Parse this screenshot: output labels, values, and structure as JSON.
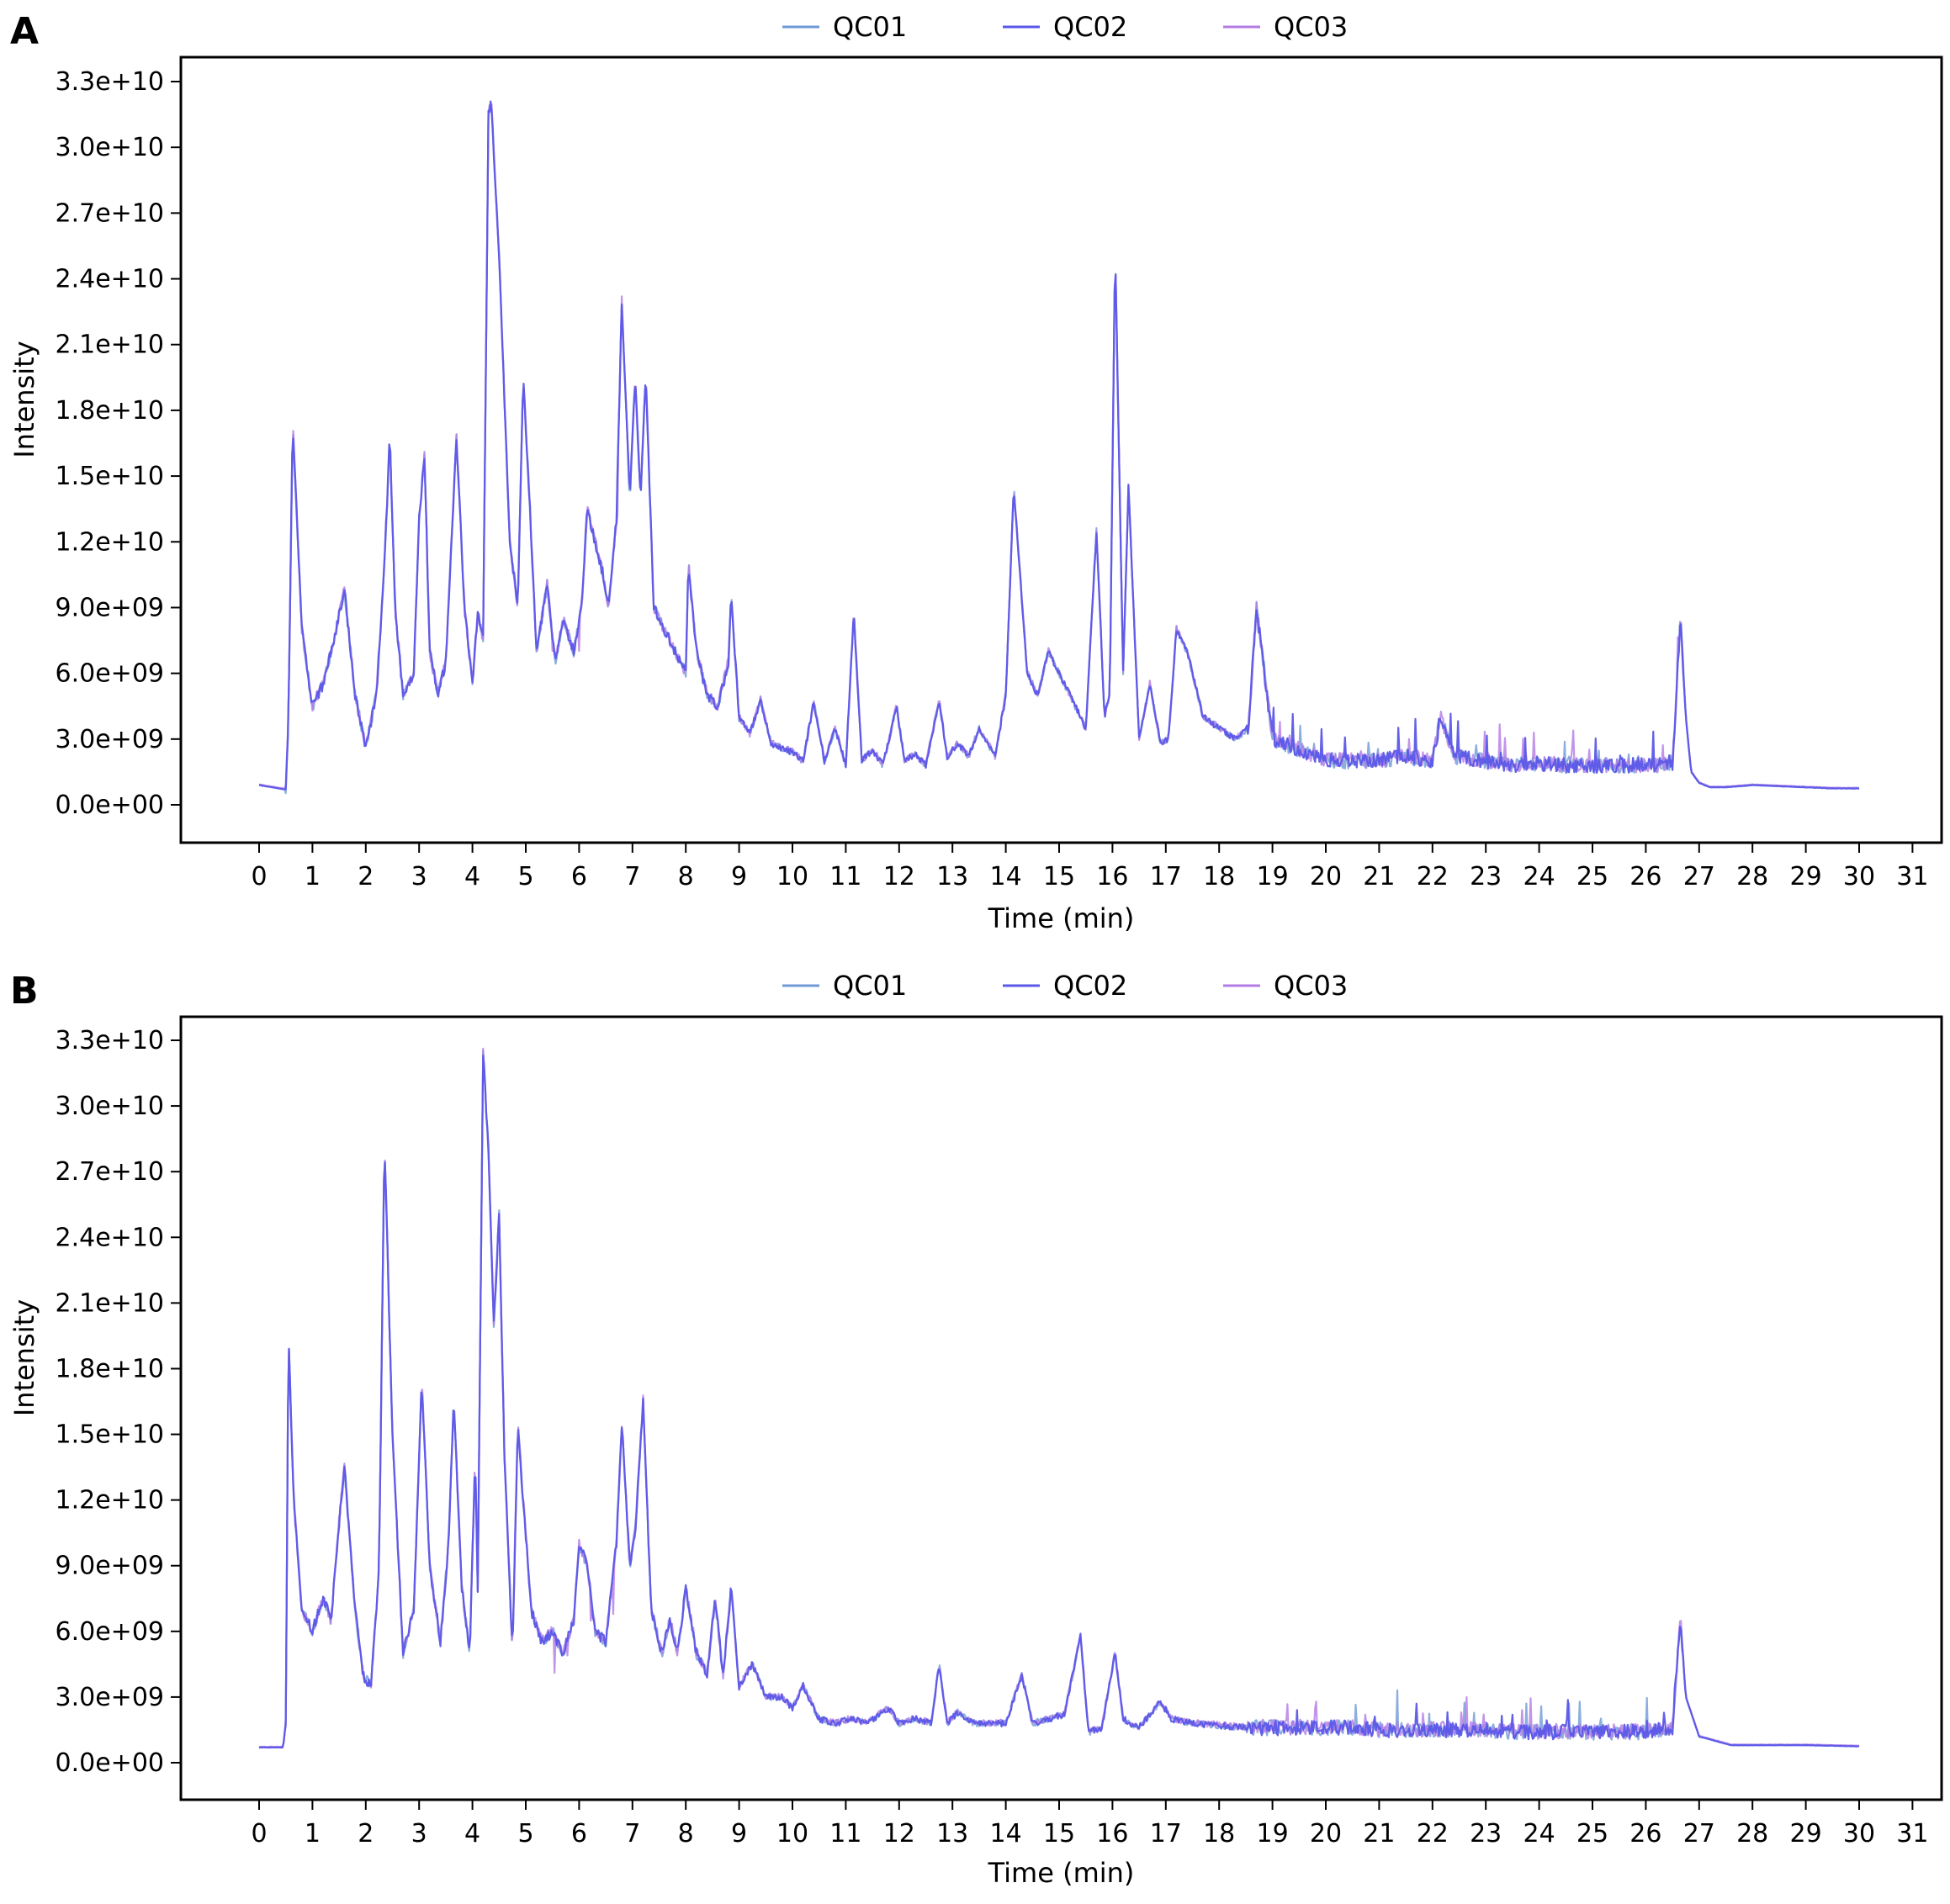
{
  "chart_data": [
    {
      "panel": "A",
      "type": "line",
      "xlabel": "Time (min)",
      "ylabel": "Intensity",
      "xlim": [
        -1.5,
        31.5
      ],
      "ylim": [
        -1600000000.0,
        34000000000.0
      ],
      "x_ticks": [
        "0",
        "1",
        "2",
        "3",
        "4",
        "5",
        "6",
        "7",
        "8",
        "9",
        "10",
        "11",
        "12",
        "13",
        "14",
        "15",
        "16",
        "17",
        "18",
        "19",
        "20",
        "21",
        "22",
        "23",
        "24",
        "25",
        "26",
        "27",
        "28",
        "29",
        "30",
        "31"
      ],
      "y_ticks": [
        "0.0e+00",
        "3.0e+09",
        "6.0e+09",
        "9.0e+09",
        "1.2e+10",
        "1.5e+10",
        "1.8e+10",
        "2.1e+10",
        "2.4e+10",
        "2.7e+10",
        "3.0e+10",
        "3.3e+10"
      ],
      "legend_position": "top-center",
      "series": [
        {
          "name": "QC01",
          "color": "#6f9ad6",
          "offset": 0.0
        },
        {
          "name": "QC02",
          "color": "#5b57e8",
          "offset": 0.0
        },
        {
          "name": "QC03",
          "color": "#b37be6",
          "offset": 1.0
        }
      ],
      "x": [
        0.0,
        0.5,
        0.55,
        0.63,
        0.7,
        0.8,
        1.0,
        1.2,
        1.4,
        1.6,
        1.8,
        2.0,
        2.2,
        2.35,
        2.45,
        2.55,
        2.7,
        2.9,
        3.0,
        3.1,
        3.2,
        3.35,
        3.5,
        3.7,
        3.85,
        4.0,
        4.1,
        4.2,
        4.3,
        4.35,
        4.5,
        4.7,
        4.85,
        4.95,
        5.05,
        5.2,
        5.4,
        5.55,
        5.7,
        5.9,
        6.05,
        6.15,
        6.3,
        6.45,
        6.55,
        6.7,
        6.8,
        6.95,
        7.05,
        7.15,
        7.25,
        7.4,
        7.6,
        7.8,
        8.0,
        8.05,
        8.2,
        8.4,
        8.6,
        8.8,
        8.85,
        9.0,
        9.2,
        9.4,
        9.6,
        9.8,
        10.0,
        10.2,
        10.4,
        10.6,
        10.8,
        11.0,
        11.15,
        11.3,
        11.5,
        11.7,
        11.95,
        12.1,
        12.3,
        12.5,
        12.75,
        12.9,
        13.1,
        13.3,
        13.5,
        13.8,
        14.0,
        14.15,
        14.4,
        14.6,
        14.8,
        15.0,
        15.2,
        15.5,
        15.7,
        15.85,
        15.95,
        16.05,
        16.2,
        16.3,
        16.5,
        16.7,
        16.9,
        17.05,
        17.2,
        17.4,
        17.7,
        18.0,
        18.3,
        18.55,
        18.7,
        19.0,
        19.5,
        20.0,
        20.5,
        21.0,
        21.5,
        22.0,
        22.15,
        22.4,
        23.0,
        23.5,
        24.0,
        24.5,
        25.0,
        25.5,
        26.0,
        26.5,
        26.65,
        26.75,
        26.85,
        27.0,
        27.2,
        27.5,
        28.0,
        28.5,
        29.0,
        29.5,
        30.0
      ],
      "values": [
        900000000.0,
        700000000.0,
        3800000000.0,
        17500000000.0,
        13500000000.0,
        8000000000.0,
        4500000000.0,
        5500000000.0,
        7500000000.0,
        9800000000.0,
        5000000000.0,
        2600000000.0,
        5000000000.0,
        11000000000.0,
        16800000000.0,
        9000000000.0,
        5000000000.0,
        6000000000.0,
        13000000000.0,
        16000000000.0,
        7000000000.0,
        5000000000.0,
        6500000000.0,
        16800000000.0,
        9000000000.0,
        5500000000.0,
        8800000000.0,
        7500000000.0,
        31500000000.0,
        32200000000.0,
        25000000000.0,
        12000000000.0,
        9000000000.0,
        19500000000.0,
        15000000000.0,
        7000000000.0,
        10000000000.0,
        6500000000.0,
        8500000000.0,
        7000000000.0,
        9000000000.0,
        13500000000.0,
        12000000000.0,
        10500000000.0,
        9000000000.0,
        13000000000.0,
        23000000000.0,
        14000000000.0,
        19500000000.0,
        14000000000.0,
        19500000000.0,
        9000000000.0,
        8000000000.0,
        7000000000.0,
        6000000000.0,
        11000000000.0,
        7000000000.0,
        5000000000.0,
        4500000000.0,
        6500000000.0,
        9500000000.0,
        4000000000.0,
        3200000000.0,
        4800000000.0,
        2800000000.0,
        2600000000.0,
        2400000000.0,
        2000000000.0,
        4700000000.0,
        2000000000.0,
        3500000000.0,
        1800000000.0,
        8800000000.0,
        2000000000.0,
        2500000000.0,
        1800000000.0,
        4500000000.0,
        2000000000.0,
        2300000000.0,
        1800000000.0,
        4800000000.0,
        2200000000.0,
        2800000000.0,
        2200000000.0,
        3500000000.0,
        2200000000.0,
        5000000000.0,
        14500000000.0,
        6000000000.0,
        5000000000.0,
        7000000000.0,
        6000000000.0,
        5000000000.0,
        3500000000.0,
        12500000000.0,
        4000000000.0,
        5000000000.0,
        25500000000.0,
        6000000000.0,
        14500000000.0,
        3000000000.0,
        5500000000.0,
        2800000000.0,
        3000000000.0,
        8000000000.0,
        7000000000.0,
        4000000000.0,
        3500000000.0,
        3000000000.0,
        3500000000.0,
        9000000000.0,
        3000000000.0,
        2500000000.0,
        2000000000.0,
        2000000000.0,
        2000000000.0,
        2200000000.0,
        2000000000.0,
        4000000000.0,
        2200000000.0,
        2000000000.0,
        1800000000.0,
        1900000000.0,
        1800000000.0,
        1800000000.0,
        1800000000.0,
        1800000000.0,
        1800000000.0,
        8500000000.0,
        4000000000.0,
        1500000000.0,
        1000000000.0,
        800000000.0,
        800000000.0,
        900000000.0,
        850000000.0,
        800000000.0,
        750000000.0,
        750000000.0
      ]
    },
    {
      "panel": "B",
      "type": "line",
      "xlabel": "Time (min)",
      "ylabel": "Intensity",
      "xlim": [
        -1.5,
        31.5
      ],
      "ylim": [
        -1600000000.0,
        34000000000.0
      ],
      "x_ticks": [
        "0",
        "1",
        "2",
        "3",
        "4",
        "5",
        "6",
        "7",
        "8",
        "9",
        "10",
        "11",
        "12",
        "13",
        "14",
        "15",
        "16",
        "17",
        "18",
        "19",
        "20",
        "21",
        "22",
        "23",
        "24",
        "25",
        "26",
        "27",
        "28",
        "29",
        "30",
        "31"
      ],
      "y_ticks": [
        "0.0e+00",
        "3.0e+09",
        "6.0e+09",
        "9.0e+09",
        "1.2e+10",
        "1.5e+10",
        "1.8e+10",
        "2.1e+10",
        "2.4e+10",
        "2.7e+10",
        "3.0e+10",
        "3.3e+10"
      ],
      "legend_position": "top-center",
      "series": [
        {
          "name": "QC01",
          "color": "#6f9ad6",
          "offset": 0.0
        },
        {
          "name": "QC02",
          "color": "#5b57e8",
          "offset": 0.0
        },
        {
          "name": "QC03",
          "color": "#b37be6",
          "offset": 1.0
        }
      ],
      "x": [
        0.0,
        0.45,
        0.5,
        0.55,
        0.65,
        0.8,
        1.0,
        1.2,
        1.35,
        1.5,
        1.6,
        1.8,
        1.95,
        2.1,
        2.25,
        2.35,
        2.5,
        2.7,
        2.9,
        3.05,
        3.2,
        3.4,
        3.55,
        3.65,
        3.8,
        3.95,
        4.05,
        4.1,
        4.2,
        4.3,
        4.4,
        4.5,
        4.6,
        4.75,
        4.85,
        4.95,
        5.1,
        5.3,
        5.5,
        5.7,
        5.9,
        6.0,
        6.15,
        6.3,
        6.5,
        6.7,
        6.8,
        6.95,
        7.05,
        7.2,
        7.35,
        7.55,
        7.7,
        7.85,
        8.0,
        8.2,
        8.4,
        8.55,
        8.7,
        8.85,
        9.0,
        9.25,
        9.5,
        9.8,
        10.0,
        10.2,
        10.5,
        10.8,
        11.1,
        11.4,
        11.8,
        12.0,
        12.3,
        12.6,
        12.75,
        12.9,
        13.1,
        13.4,
        13.7,
        14.0,
        14.3,
        14.5,
        14.8,
        15.1,
        15.4,
        15.55,
        15.8,
        16.05,
        16.2,
        16.5,
        16.9,
        17.1,
        17.5,
        18.0,
        18.5,
        19.0,
        19.5,
        20.0,
        20.5,
        21.0,
        21.5,
        22.0,
        22.5,
        23.0,
        23.5,
        24.0,
        24.5,
        25.0,
        25.5,
        26.0,
        26.5,
        26.65,
        26.75,
        27.0,
        27.3,
        27.6,
        28.0,
        29.0,
        30.0
      ],
      "values": [
        700000000.0,
        700000000.0,
        1800000000.0,
        19500000000.0,
        12000000000.0,
        7000000000.0,
        6000000000.0,
        7500000000.0,
        6500000000.0,
        11000000000.0,
        13500000000.0,
        7000000000.0,
        4000000000.0,
        3500000000.0,
        9000000000.0,
        28500000000.0,
        15000000000.0,
        5000000000.0,
        7000000000.0,
        17500000000.0,
        9000000000.0,
        5500000000.0,
        10000000000.0,
        16500000000.0,
        8000000000.0,
        5000000000.0,
        14000000000.0,
        8000000000.0,
        32500000000.0,
        28000000000.0,
        20000000000.0,
        25000000000.0,
        14000000000.0,
        5000000000.0,
        15500000000.0,
        12000000000.0,
        7000000000.0,
        5500000000.0,
        6000000000.0,
        5000000000.0,
        6500000000.0,
        10000000000.0,
        9000000000.0,
        6000000000.0,
        5500000000.0,
        10000000000.0,
        15500000000.0,
        9000000000.0,
        10500000000.0,
        16500000000.0,
        7000000000.0,
        5000000000.0,
        6500000000.0,
        5000000000.0,
        8000000000.0,
        5000000000.0,
        4000000000.0,
        7500000000.0,
        4000000000.0,
        8000000000.0,
        3500000000.0,
        4500000000.0,
        3000000000.0,
        3000000000.0,
        2500000000.0,
        3500000000.0,
        2000000000.0,
        1800000000.0,
        2000000000.0,
        1800000000.0,
        2500000000.0,
        1800000000.0,
        2000000000.0,
        1800000000.0,
        4500000000.0,
        1800000000.0,
        2300000000.0,
        1800000000.0,
        1800000000.0,
        1800000000.0,
        4000000000.0,
        1800000000.0,
        2000000000.0,
        2200000000.0,
        5800000000.0,
        1400000000.0,
        1600000000.0,
        5000000000.0,
        2000000000.0,
        1600000000.0,
        2800000000.0,
        2000000000.0,
        1800000000.0,
        1700000000.0,
        1600000000.0,
        1600000000.0,
        1600000000.0,
        1600000000.0,
        1600000000.0,
        1500000000.0,
        1500000000.0,
        1500000000.0,
        1500000000.0,
        1500000000.0,
        1400000000.0,
        1400000000.0,
        1400000000.0,
        1400000000.0,
        1400000000.0,
        1400000000.0,
        1600000000.0,
        6500000000.0,
        3000000000.0,
        1200000000.0,
        1000000000.0,
        800000000.0,
        800000000.0,
        800000000.0,
        750000000.0
      ]
    }
  ]
}
